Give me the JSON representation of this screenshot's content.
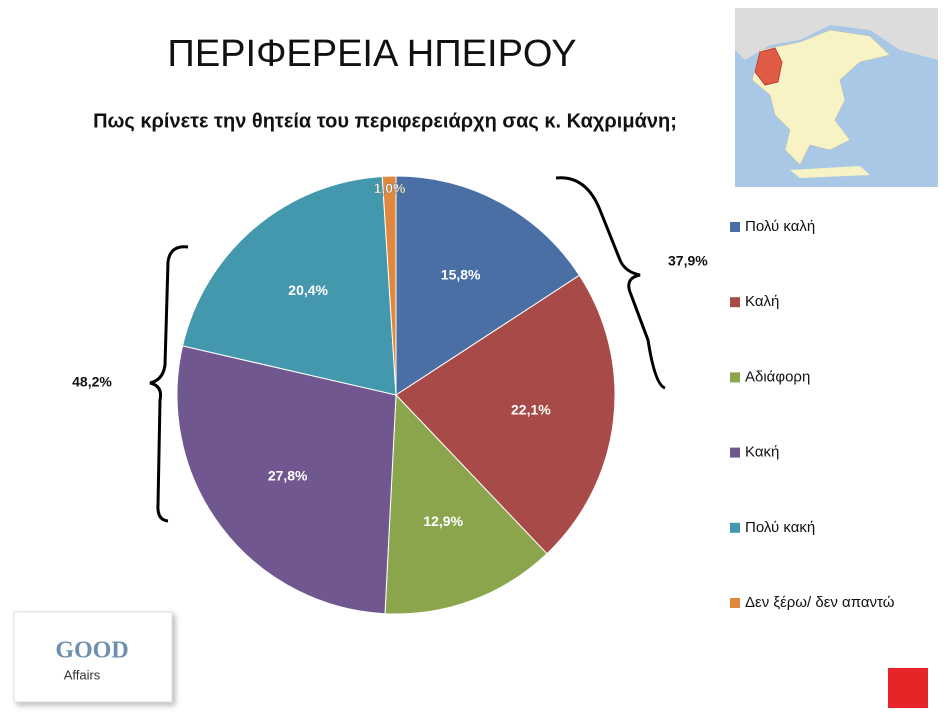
{
  "chart_data": {
    "type": "pie",
    "title": "ΠΕΡΙΦΕΡΕΙΑ ΗΠΕΙΡΟΥ",
    "subtitle": "Πως κρίνετε την θητεία του περιφερειάρχη σας κ. Καχριμάνη;",
    "categories": [
      "Πολύ καλή",
      "Καλή",
      "Αδιάφορη",
      "Κακή",
      "Πολύ κακή",
      "Δεν ξέρω/ δεν απαντώ"
    ],
    "values": [
      15.8,
      22.1,
      12.9,
      27.8,
      20.4,
      1.0
    ],
    "value_labels": [
      "15,8%",
      "22,1%",
      "12,9%",
      "27,8%",
      "20,4%",
      "1,0%"
    ],
    "colors": [
      "#4a6fa5",
      "#a84a48",
      "#8ba54c",
      "#70578f",
      "#4398ad",
      "#e0883e"
    ],
    "legend": "right",
    "annotations": [
      "37,9%",
      "48,2%"
    ]
  },
  "logo": {
    "line1": "GOOD",
    "line2": "Affairs"
  }
}
